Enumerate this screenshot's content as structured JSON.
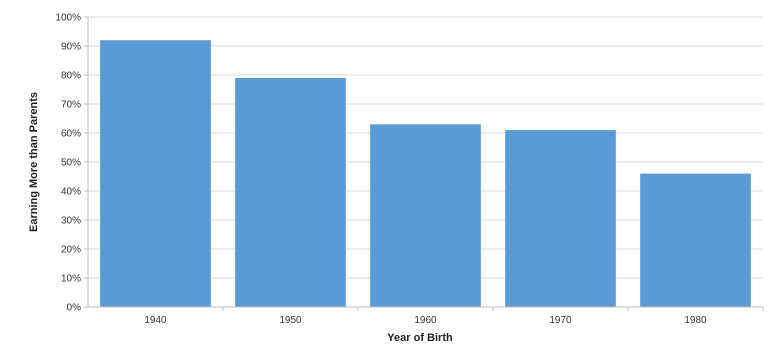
{
  "chart_data": {
    "type": "bar",
    "categories": [
      "1940",
      "1950",
      "1960",
      "1970",
      "1980"
    ],
    "values": [
      92,
      79,
      63,
      61,
      46
    ],
    "xlabel": "Year of Birth",
    "ylabel": "Earning More than Parents",
    "ylim": [
      0,
      100
    ],
    "ytick_step": 10,
    "ytick_format": "percent",
    "grid": true,
    "legend": "none",
    "bar_color": "#5b9bd5"
  }
}
